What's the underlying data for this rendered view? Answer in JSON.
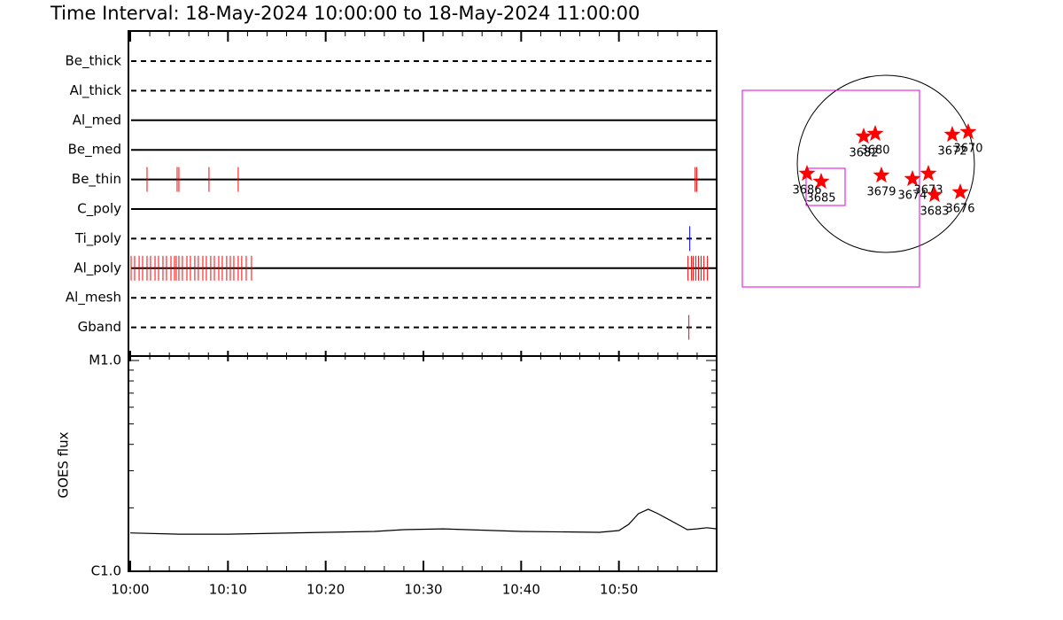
{
  "chart_data": [
    {
      "type": "event_rows",
      "title": "Time Interval: 18-May-2024 10:00:00 to 18-May-2024 11:00:00",
      "xlim": [
        0,
        60
      ],
      "xticks": [
        {
          "value": 0,
          "label": "10:00"
        },
        {
          "value": 10,
          "label": "10:10"
        },
        {
          "value": 20,
          "label": "10:20"
        },
        {
          "value": 30,
          "label": "10:30"
        },
        {
          "value": 40,
          "label": "10:40"
        },
        {
          "value": 50,
          "label": "10:50"
        }
      ],
      "xminorticks": [
        2,
        4,
        6,
        8,
        12,
        14,
        16,
        18,
        22,
        24,
        26,
        28,
        32,
        34,
        36,
        38,
        42,
        44,
        46,
        48,
        52,
        54,
        56,
        58
      ],
      "filters": [
        {
          "name": "Be_thick",
          "style": "dashed",
          "color": "#ff0000",
          "events": []
        },
        {
          "name": "Al_thick",
          "style": "dashed",
          "color": "#ff0000",
          "events": []
        },
        {
          "name": "Al_med",
          "style": "solid",
          "color": "#ff0000",
          "events": []
        },
        {
          "name": "Be_med",
          "style": "solid",
          "color": "#ff0000",
          "events": []
        },
        {
          "name": "Be_thin",
          "style": "solid",
          "color": "#ff0000",
          "events": [
            1.72,
            4.8,
            4.98,
            8.06,
            11.05,
            57.8,
            57.97
          ]
        },
        {
          "name": "C_poly",
          "style": "solid",
          "color": "#ff0000",
          "events": []
        },
        {
          "name": "Ti_poly",
          "style": "dashed",
          "color": "#0000ff",
          "events": [
            57.25
          ]
        },
        {
          "name": "Al_poly",
          "style": "solid",
          "color": "#ff0000",
          "events": [
            0.09,
            0.45,
            0.91,
            1.27,
            1.72,
            2.08,
            2.54,
            2.9,
            3.35,
            3.71,
            4.17,
            4.53,
            4.71,
            4.98,
            5.34,
            5.8,
            6.16,
            6.61,
            6.97,
            7.43,
            7.79,
            8.24,
            8.61,
            9.06,
            9.42,
            9.87,
            10.24,
            10.6,
            11.05,
            11.41,
            11.87,
            12.41,
            57.07,
            57.43,
            57.61,
            57.88,
            58.15,
            58.42,
            58.7,
            59.06
          ]
        },
        {
          "name": "Al_mesh",
          "style": "dashed",
          "color": "#ff0000",
          "events": []
        },
        {
          "name": "Gband",
          "style": "dashed",
          "color": "#ff0000",
          "events": [
            57.16
          ]
        }
      ]
    },
    {
      "type": "line",
      "ylabel": "GOES flux",
      "log_scale": true,
      "ylim": [
        1e-06,
        1e-05
      ],
      "yticks": [
        {
          "value": 1e-06,
          "label": "C1.0"
        },
        {
          "value": 1e-05,
          "label": "M1.0"
        }
      ],
      "yminorticks": [
        2e-06,
        3e-06,
        4e-06,
        5e-06,
        6e-06,
        7e-06,
        8e-06,
        9e-06
      ],
      "xlim": [
        0,
        60
      ],
      "x": [
        0,
        5,
        10,
        20,
        25,
        28,
        32,
        40,
        48,
        50,
        51,
        52,
        53,
        54,
        56,
        57,
        58,
        59,
        60
      ],
      "values": [
        1.52e-06,
        1.5e-06,
        1.5e-06,
        1.53e-06,
        1.545e-06,
        1.575e-06,
        1.59e-06,
        1.545e-06,
        1.53e-06,
        1.56e-06,
        1.67e-06,
        1.875e-06,
        1.97e-06,
        1.875e-06,
        1.67e-06,
        1.575e-06,
        1.59e-06,
        1.61e-06,
        1.59e-06
      ],
      "color": "#000000"
    },
    {
      "type": "disk",
      "regions": [
        {
          "label": "3682",
          "x": -0.25,
          "y": 0.31
        },
        {
          "label": "3680",
          "x": -0.12,
          "y": 0.34
        },
        {
          "label": "3672",
          "x": 0.75,
          "y": 0.33
        },
        {
          "label": "3670",
          "x": 0.93,
          "y": 0.36
        },
        {
          "label": "3686",
          "x": -0.89,
          "y": -0.11
        },
        {
          "label": "3685",
          "x": -0.73,
          "y": -0.2
        },
        {
          "label": "3679",
          "x": -0.05,
          "y": -0.13
        },
        {
          "label": "3674",
          "x": 0.3,
          "y": -0.17
        },
        {
          "label": "3673",
          "x": 0.48,
          "y": -0.11
        },
        {
          "label": "3683",
          "x": 0.55,
          "y": -0.35
        },
        {
          "label": "3676",
          "x": 0.84,
          "y": -0.32
        }
      ],
      "star_color": "#ff0000"
    }
  ]
}
